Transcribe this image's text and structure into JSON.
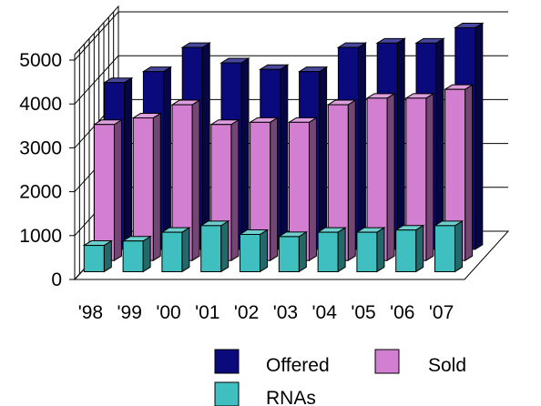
{
  "chart_data": {
    "type": "bar",
    "title": "",
    "xlabel": "",
    "ylabel": "",
    "categories": [
      "'98",
      "'99",
      "'00",
      "'01",
      "'02",
      "'03",
      "'04",
      "'05",
      "'06",
      "'07"
    ],
    "series": [
      {
        "name": "Offered",
        "color": "#0a0a7c",
        "values": [
          3800,
          4050,
          4600,
          4250,
          4100,
          4050,
          4600,
          4700,
          4700,
          5050
        ]
      },
      {
        "name": "Sold",
        "color": "#d27fd2",
        "values": [
          3100,
          3250,
          3550,
          3100,
          3150,
          3150,
          3550,
          3700,
          3700,
          3900
        ]
      },
      {
        "name": "RNAs",
        "color": "#3fbfbf",
        "values": [
          600,
          700,
          900,
          1050,
          850,
          800,
          900,
          900,
          950,
          1050
        ]
      }
    ],
    "yticks": [
      0,
      1000,
      2000,
      3000,
      4000,
      5000
    ],
    "ylim": [
      0,
      5000
    ],
    "grid": true,
    "legend": "bottom-right",
    "projection": "3d"
  }
}
